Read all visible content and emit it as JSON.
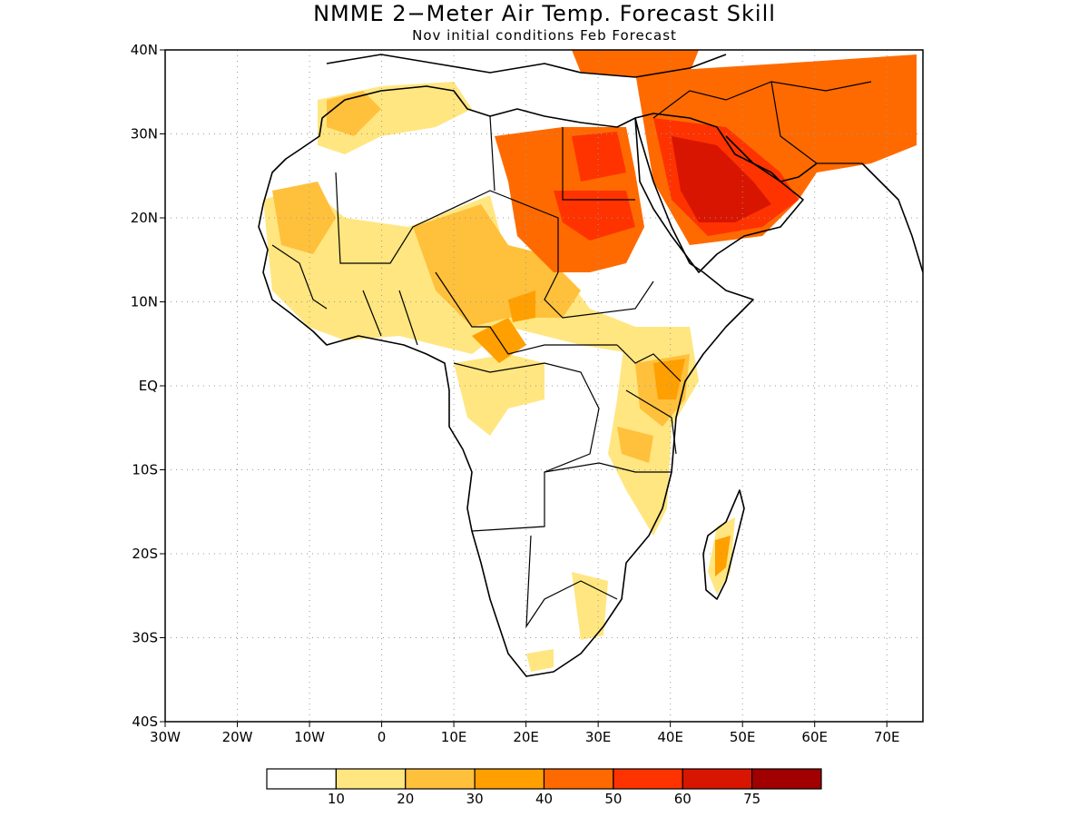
{
  "title": "NMME 2−Meter Air Temp. Forecast Skill",
  "subtitle": "Nov initial conditions  Feb Forecast",
  "map": {
    "lon_range": [
      -30,
      75
    ],
    "lat_range": [
      -40,
      40
    ],
    "lat_ticks": [
      {
        "value": 40,
        "label": "40N"
      },
      {
        "value": 30,
        "label": "30N"
      },
      {
        "value": 20,
        "label": "20N"
      },
      {
        "value": 10,
        "label": "10N"
      },
      {
        "value": 0,
        "label": "EQ"
      },
      {
        "value": -10,
        "label": "10S"
      },
      {
        "value": -20,
        "label": "20S"
      },
      {
        "value": -30,
        "label": "30S"
      },
      {
        "value": -40,
        "label": "40S"
      }
    ],
    "lon_ticks": [
      {
        "value": -30,
        "label": "30W"
      },
      {
        "value": -20,
        "label": "20W"
      },
      {
        "value": -10,
        "label": "10W"
      },
      {
        "value": 0,
        "label": "0"
      },
      {
        "value": 10,
        "label": "10E"
      },
      {
        "value": 20,
        "label": "20E"
      },
      {
        "value": 30,
        "label": "30E"
      },
      {
        "value": 40,
        "label": "40E"
      },
      {
        "value": 50,
        "label": "50E"
      },
      {
        "value": 60,
        "label": "60E"
      },
      {
        "value": 70,
        "label": "70E"
      }
    ],
    "shading_colors": [
      "#ffffff",
      "#ffe680",
      "#ffc03c",
      "#ff9f00",
      "#ff6a00",
      "#ff3300",
      "#d81500",
      "#a00000"
    ]
  },
  "colorbar": {
    "colors": [
      "#ffffff",
      "#ffe680",
      "#ffc03c",
      "#ff9f00",
      "#ff6a00",
      "#ff3300",
      "#d81500",
      "#a00000"
    ],
    "labels": [
      "10",
      "20",
      "30",
      "40",
      "50",
      "60",
      "75"
    ]
  }
}
